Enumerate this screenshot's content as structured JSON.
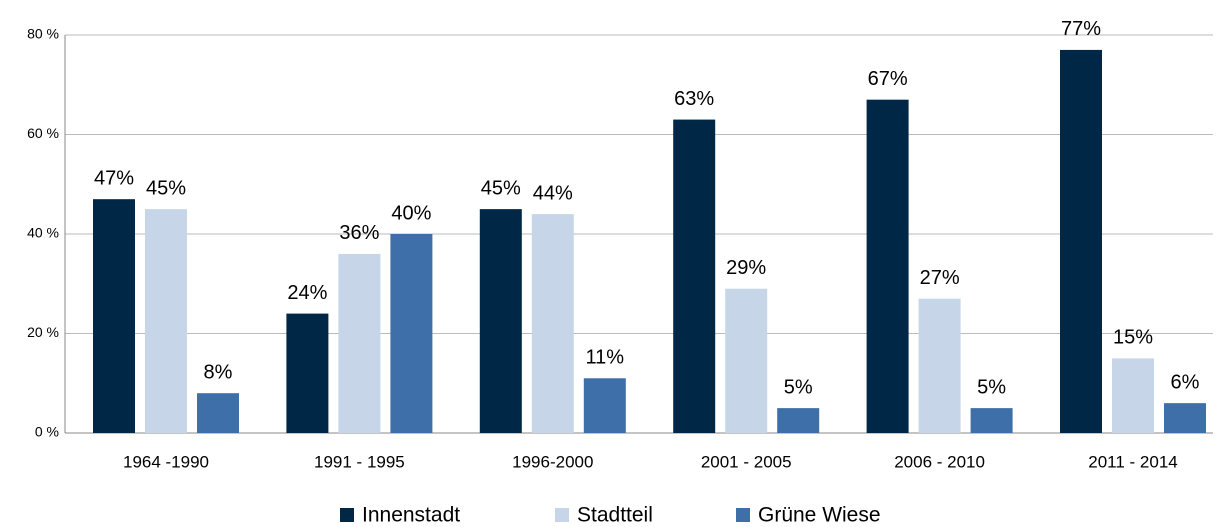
{
  "chart_data": {
    "type": "bar",
    "categories": [
      "1964 -1990",
      "1991 - 1995",
      "1996-2000",
      "2001 - 2005",
      "2006 - 2010",
      "2011 - 2014"
    ],
    "series": [
      {
        "name": "Innenstadt",
        "color": "#002846",
        "values": [
          47,
          24,
          45,
          63,
          67,
          77
        ],
        "value_labels": [
          "47%",
          "24%",
          "45%",
          "63%",
          "67%",
          "77%"
        ]
      },
      {
        "name": "Stadtteil",
        "color": "#c6d6e8",
        "values": [
          45,
          36,
          44,
          29,
          27,
          15
        ],
        "value_labels": [
          "45%",
          "36%",
          "44%",
          "29%",
          "27%",
          "15%"
        ]
      },
      {
        "name": "Grüne Wiese",
        "color": "#3f6fa8",
        "values": [
          8,
          40,
          11,
          5,
          5,
          6
        ],
        "value_labels": [
          "8%",
          "40%",
          "11%",
          "5%",
          "5%",
          "6%"
        ]
      }
    ],
    "ylim": [
      0,
      80
    ],
    "yticks": [
      {
        "value": 0,
        "label": "0 %"
      },
      {
        "value": 20,
        "label": "20 %"
      },
      {
        "value": 40,
        "label": "40 %"
      },
      {
        "value": 60,
        "label": "60 %"
      },
      {
        "value": 80,
        "label": "80 %"
      }
    ],
    "grid": true,
    "legend": "bottom"
  }
}
